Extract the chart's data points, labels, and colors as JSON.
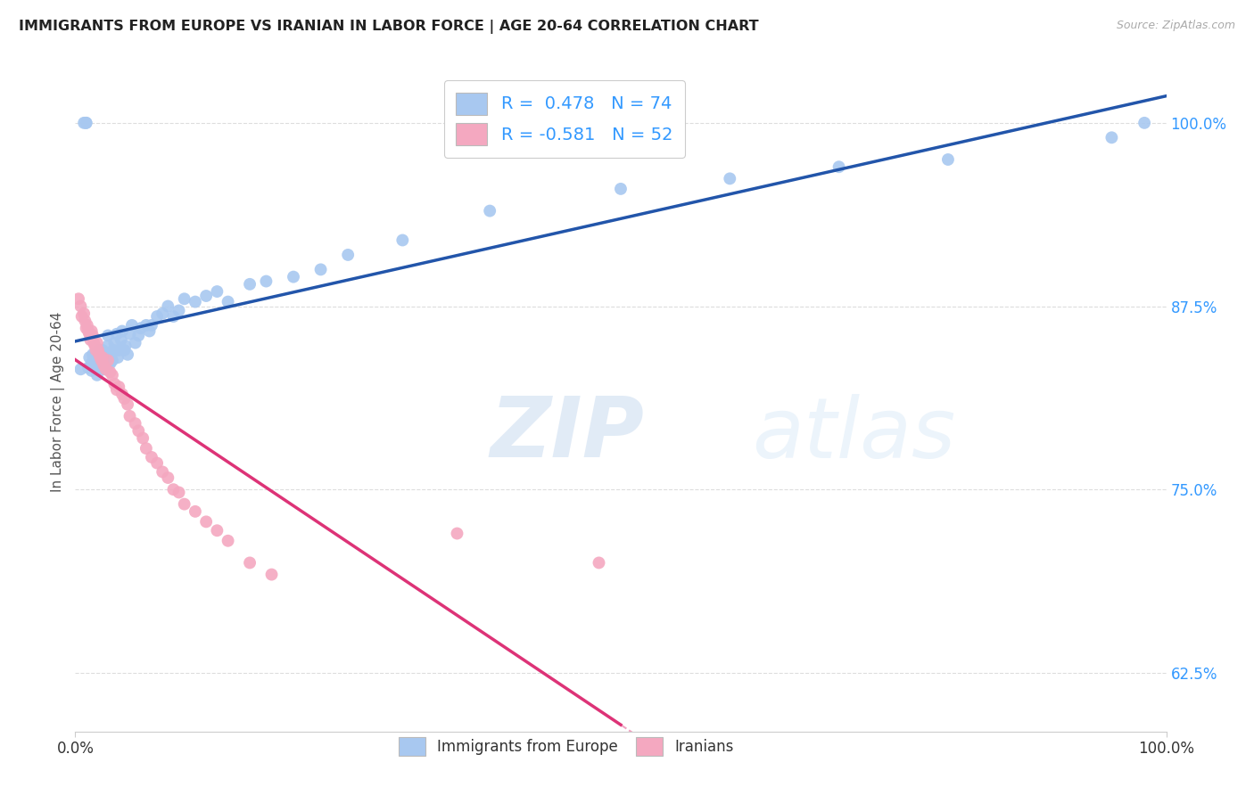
{
  "title": "IMMIGRANTS FROM EUROPE VS IRANIAN IN LABOR FORCE | AGE 20-64 CORRELATION CHART",
  "source": "Source: ZipAtlas.com",
  "ylabel": "In Labor Force | Age 20-64",
  "xlim": [
    0.0,
    1.0
  ],
  "ylim": [
    0.585,
    1.035
  ],
  "yticks": [
    0.625,
    0.75,
    0.875,
    1.0
  ],
  "ytick_labels": [
    "62.5%",
    "75.0%",
    "87.5%",
    "100.0%"
  ],
  "xtick_labels": [
    "0.0%",
    "100.0%"
  ],
  "xticks": [
    0.0,
    1.0
  ],
  "blue_r": 0.478,
  "blue_n": 74,
  "pink_r": -0.581,
  "pink_n": 52,
  "blue_color": "#A8C8F0",
  "pink_color": "#F4A8C0",
  "blue_line_color": "#2255AA",
  "pink_line_color": "#DD3377",
  "watermark_zip": "ZIP",
  "watermark_atlas": "atlas",
  "legend_label_blue": "Immigrants from Europe",
  "legend_label_pink": "Iranians",
  "blue_scatter_x": [
    0.005,
    0.008,
    0.01,
    0.01,
    0.012,
    0.013,
    0.015,
    0.015,
    0.016,
    0.017,
    0.018,
    0.019,
    0.02,
    0.02,
    0.021,
    0.022,
    0.022,
    0.023,
    0.023,
    0.024,
    0.025,
    0.025,
    0.026,
    0.026,
    0.027,
    0.028,
    0.029,
    0.03,
    0.03,
    0.031,
    0.032,
    0.033,
    0.034,
    0.035,
    0.036,
    0.038,
    0.039,
    0.04,
    0.042,
    0.043,
    0.045,
    0.046,
    0.048,
    0.05,
    0.052,
    0.055,
    0.058,
    0.06,
    0.065,
    0.068,
    0.07,
    0.075,
    0.08,
    0.085,
    0.09,
    0.095,
    0.1,
    0.11,
    0.12,
    0.13,
    0.14,
    0.16,
    0.175,
    0.2,
    0.225,
    0.25,
    0.3,
    0.38,
    0.5,
    0.6,
    0.7,
    0.8,
    0.95,
    0.98
  ],
  "blue_scatter_y": [
    0.832,
    1.0,
    1.0,
    1.0,
    0.833,
    0.84,
    0.831,
    0.836,
    0.842,
    0.838,
    0.84,
    0.835,
    0.828,
    0.832,
    0.836,
    0.84,
    0.845,
    0.838,
    0.842,
    0.835,
    0.84,
    0.845,
    0.836,
    0.841,
    0.832,
    0.838,
    0.842,
    0.848,
    0.855,
    0.84,
    0.836,
    0.842,
    0.838,
    0.845,
    0.85,
    0.856,
    0.84,
    0.845,
    0.852,
    0.858,
    0.845,
    0.848,
    0.842,
    0.856,
    0.862,
    0.85,
    0.855,
    0.86,
    0.862,
    0.858,
    0.862,
    0.868,
    0.87,
    0.875,
    0.868,
    0.872,
    0.88,
    0.878,
    0.882,
    0.885,
    0.878,
    0.89,
    0.892,
    0.895,
    0.9,
    0.91,
    0.92,
    0.94,
    0.955,
    0.962,
    0.97,
    0.975,
    0.99,
    1.0
  ],
  "pink_scatter_x": [
    0.003,
    0.005,
    0.006,
    0.008,
    0.009,
    0.01,
    0.011,
    0.012,
    0.013,
    0.014,
    0.015,
    0.016,
    0.017,
    0.018,
    0.019,
    0.02,
    0.021,
    0.022,
    0.023,
    0.024,
    0.025,
    0.026,
    0.028,
    0.03,
    0.032,
    0.034,
    0.036,
    0.038,
    0.04,
    0.043,
    0.045,
    0.048,
    0.05,
    0.055,
    0.058,
    0.062,
    0.065,
    0.07,
    0.075,
    0.08,
    0.085,
    0.09,
    0.095,
    0.1,
    0.11,
    0.12,
    0.13,
    0.14,
    0.16,
    0.18,
    0.35,
    0.48
  ],
  "pink_scatter_y": [
    0.88,
    0.875,
    0.868,
    0.87,
    0.865,
    0.86,
    0.862,
    0.858,
    0.856,
    0.852,
    0.858,
    0.855,
    0.85,
    0.848,
    0.845,
    0.85,
    0.845,
    0.842,
    0.84,
    0.838,
    0.84,
    0.835,
    0.832,
    0.838,
    0.83,
    0.828,
    0.822,
    0.818,
    0.82,
    0.815,
    0.812,
    0.808,
    0.8,
    0.795,
    0.79,
    0.785,
    0.778,
    0.772,
    0.768,
    0.762,
    0.758,
    0.75,
    0.748,
    0.74,
    0.735,
    0.728,
    0.722,
    0.715,
    0.7,
    0.692,
    0.72,
    0.7
  ]
}
